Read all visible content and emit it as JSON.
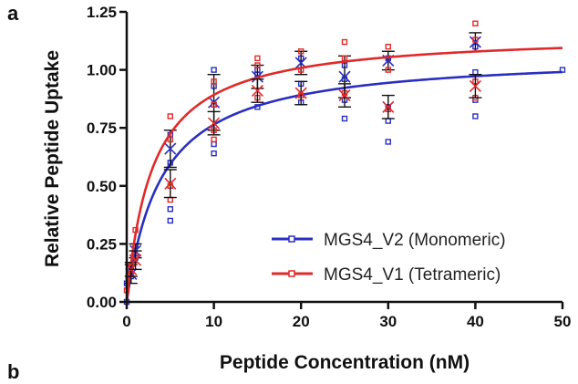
{
  "panel_labels": {
    "top": "a",
    "bottom": "b"
  },
  "chart_data": {
    "type": "scatter",
    "xlabel": "Peptide Concentration (nM)",
    "ylabel": "Relative Peptide Uptake",
    "xlim": [
      0,
      50
    ],
    "ylim": [
      0,
      1.25
    ],
    "x_ticks": [
      0,
      10,
      20,
      30,
      40,
      50
    ],
    "y_ticks": [
      0.0,
      0.25,
      0.5,
      0.75,
      1.0,
      1.25
    ],
    "x_tick_labels": [
      "0",
      "10",
      "20",
      "30",
      "40",
      "50"
    ],
    "y_tick_labels": [
      "0.00",
      "0.25",
      "0.50",
      "0.75",
      "1.00",
      "1.25"
    ],
    "grid": false,
    "legend_position": "bottom-right",
    "series": [
      {
        "name": "MGS4_V2 (Monomeric)",
        "color": "#2a2fc0",
        "fit": {
          "model": "one-site binding",
          "bmax": 1.07,
          "kd": 4.0
        },
        "points": [
          [
            0,
            0.0
          ],
          [
            0,
            0.08
          ],
          [
            0.5,
            0.11
          ],
          [
            0.5,
            0.15
          ],
          [
            1,
            0.19
          ],
          [
            1,
            0.24
          ],
          [
            5,
            0.35
          ],
          [
            5,
            0.4
          ],
          [
            5,
            0.6
          ],
          [
            5,
            0.72
          ],
          [
            10,
            0.64
          ],
          [
            10,
            0.68
          ],
          [
            10,
            0.85
          ],
          [
            10,
            0.93
          ],
          [
            10,
            1.0
          ],
          [
            15,
            0.84
          ],
          [
            15,
            0.98
          ],
          [
            15,
            1.0
          ],
          [
            20,
            0.86
          ],
          [
            20,
            0.94
          ],
          [
            20,
            1.05
          ],
          [
            25,
            0.79
          ],
          [
            25,
            0.87
          ],
          [
            25,
            0.96
          ],
          [
            25,
            1.02
          ],
          [
            30,
            0.69
          ],
          [
            30,
            0.78
          ],
          [
            30,
            0.84
          ],
          [
            30,
            1.05
          ],
          [
            40,
            0.8
          ],
          [
            40,
            0.87
          ],
          [
            40,
            0.99
          ],
          [
            40,
            1.1
          ],
          [
            50,
            1.0
          ]
        ],
        "means": [
          {
            "x": 0.5,
            "y": 0.12,
            "err": 0.04
          },
          {
            "x": 1,
            "y": 0.22,
            "err": 0.03
          },
          {
            "x": 5,
            "y": 0.66,
            "err": 0.08
          },
          {
            "x": 10,
            "y": 0.86,
            "err": 0.12
          },
          {
            "x": 15,
            "y": 0.97,
            "err": 0.05
          },
          {
            "x": 20,
            "y": 1.03,
            "err": 0.05
          },
          {
            "x": 25,
            "y": 0.97,
            "err": 0.09
          },
          {
            "x": 30,
            "y": 1.04,
            "err": 0.04
          },
          {
            "x": 40,
            "y": 1.12,
            "err": 0.04
          }
        ]
      },
      {
        "name": "MGS4_V1 (Tetrameric)",
        "color": "#e02a2a",
        "fit": {
          "model": "one-site binding",
          "bmax": 1.16,
          "kd": 3.0
        },
        "points": [
          [
            0,
            0.05
          ],
          [
            0.5,
            0.12
          ],
          [
            0.5,
            0.16
          ],
          [
            1,
            0.2
          ],
          [
            1,
            0.31
          ],
          [
            5,
            0.44
          ],
          [
            5,
            0.5
          ],
          [
            5,
            0.7
          ],
          [
            5,
            0.8
          ],
          [
            10,
            0.7
          ],
          [
            10,
            0.74
          ],
          [
            10,
            0.85
          ],
          [
            10,
            0.95
          ],
          [
            15,
            0.88
          ],
          [
            15,
            1.02
          ],
          [
            15,
            1.05
          ],
          [
            20,
            0.89
          ],
          [
            20,
            1.0
          ],
          [
            20,
            1.08
          ],
          [
            25,
            0.9
          ],
          [
            25,
            1.05
          ],
          [
            25,
            1.12
          ],
          [
            30,
            0.83
          ],
          [
            30,
            1.0
          ],
          [
            30,
            1.1
          ],
          [
            40,
            0.88
          ],
          [
            40,
            0.95
          ],
          [
            40,
            1.13
          ],
          [
            40,
            1.2
          ]
        ],
        "means": [
          {
            "x": 0.5,
            "y": 0.14,
            "err": 0.03
          },
          {
            "x": 1,
            "y": 0.18,
            "err": 0.04
          },
          {
            "x": 5,
            "y": 0.51,
            "err": 0.06
          },
          {
            "x": 10,
            "y": 0.77,
            "err": 0.05
          },
          {
            "x": 15,
            "y": 0.91,
            "err": 0.05
          },
          {
            "x": 20,
            "y": 0.9,
            "err": 0.05
          },
          {
            "x": 25,
            "y": 0.89,
            "err": 0.05
          },
          {
            "x": 30,
            "y": 0.84,
            "err": 0.05
          },
          {
            "x": 40,
            "y": 0.93,
            "err": 0.05
          }
        ]
      }
    ]
  }
}
